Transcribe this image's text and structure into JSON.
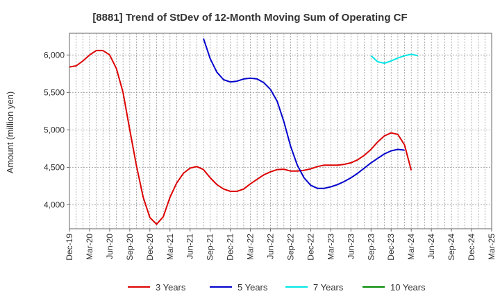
{
  "chart_data": {
    "type": "line",
    "title": "[8881]  Trend of StDev of 12-Month Moving Sum of Operating CF",
    "ylabel": "Amount (million yen)",
    "xlabel": "",
    "ylim": [
      3680,
      6290
    ],
    "yticks": [
      4000,
      4500,
      5000,
      5500,
      6000
    ],
    "ytick_labels": [
      "4,000",
      "4,500",
      "5,000",
      "5,500",
      "6,000"
    ],
    "x_start": "2019-12",
    "x_end": "2025-03",
    "xtick_labels": [
      "Dec-19",
      "Mar-20",
      "Jun-20",
      "Sep-20",
      "Dec-20",
      "Mar-21",
      "Jun-21",
      "Sep-21",
      "Dec-21",
      "Mar-22",
      "Jun-22",
      "Sep-22",
      "Dec-22",
      "Mar-23",
      "Jun-23",
      "Sep-23",
      "Dec-23",
      "Mar-24",
      "Jun-24",
      "Sep-24",
      "Dec-24",
      "Mar-25"
    ],
    "grid": true,
    "legend_position": "bottom",
    "series": [
      {
        "name": "3 Years",
        "color": "#dd0000",
        "start": "2019-12",
        "values": [
          5840,
          5855,
          5920,
          6000,
          6060,
          6060,
          6000,
          5820,
          5500,
          5000,
          4520,
          4100,
          3830,
          3740,
          3840,
          4100,
          4290,
          4420,
          4490,
          4510,
          4470,
          4360,
          4270,
          4210,
          4180,
          4180,
          4210,
          4280,
          4340,
          4400,
          4440,
          4470,
          4475,
          4450,
          4450,
          4460,
          4480,
          4510,
          4530,
          4530,
          4530,
          4540,
          4560,
          4600,
          4660,
          4740,
          4840,
          4920,
          4960,
          4940,
          4800,
          4460
        ]
      },
      {
        "name": "5 Years",
        "color": "#0000cc",
        "start": "2021-08",
        "values": [
          6220,
          5950,
          5770,
          5670,
          5640,
          5650,
          5680,
          5690,
          5680,
          5630,
          5540,
          5380,
          5110,
          4780,
          4530,
          4360,
          4260,
          4220,
          4220,
          4240,
          4270,
          4310,
          4360,
          4420,
          4490,
          4560,
          4620,
          4680,
          4720,
          4740,
          4730
        ]
      },
      {
        "name": "7 Years",
        "color": "#00e5e5",
        "start": "2023-09",
        "values": [
          5990,
          5910,
          5890,
          5920,
          5960,
          5990,
          6010,
          5990
        ]
      },
      {
        "name": "10 Years",
        "color": "#008800",
        "start": "2023-09",
        "values": []
      }
    ]
  }
}
